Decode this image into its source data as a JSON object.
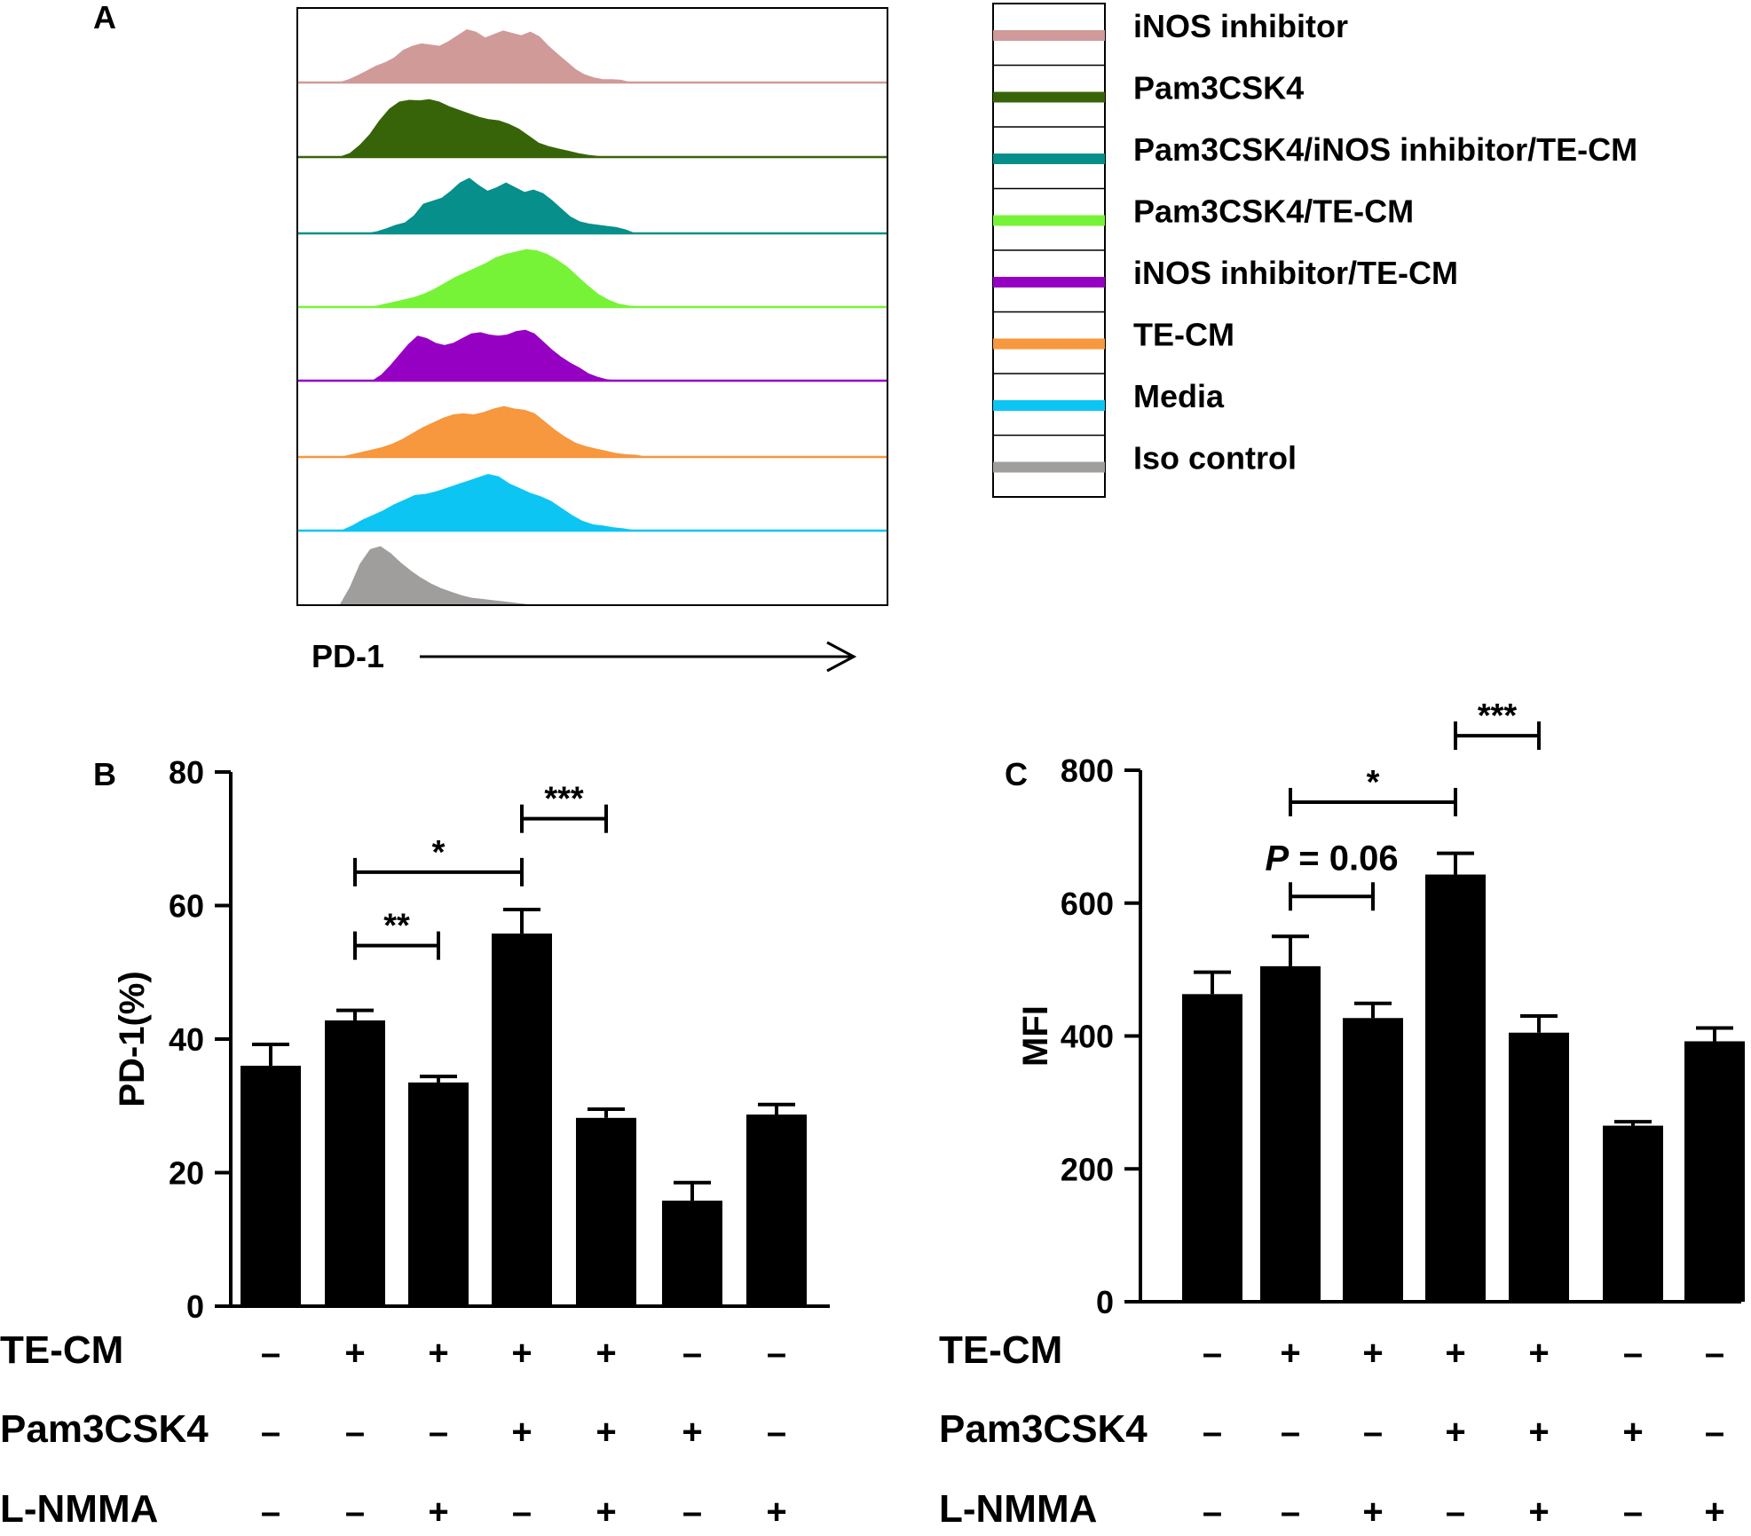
{
  "panel_a": {
    "letter": "A",
    "axis_label": "PD-1",
    "histograms": [
      {
        "name": "iNOS inhibitor",
        "color": "#d09a98",
        "profile": [
          0,
          0.05,
          0.12,
          0.2,
          0.28,
          0.34,
          0.42,
          0.55,
          0.62,
          0.66,
          0.64,
          0.62,
          0.7,
          0.8,
          0.9,
          0.86,
          0.76,
          0.82,
          0.88,
          0.84,
          0.8,
          0.86,
          0.78,
          0.62,
          0.48,
          0.35,
          0.22,
          0.13,
          0.08,
          0.05,
          0.05,
          0.04,
          0
        ]
      },
      {
        "name": "Pam3CSK4",
        "color": "#386409",
        "profile": [
          0,
          0.06,
          0.2,
          0.38,
          0.62,
          0.82,
          0.94,
          0.97,
          0.96,
          0.98,
          0.94,
          0.86,
          0.8,
          0.74,
          0.68,
          0.64,
          0.62,
          0.56,
          0.48,
          0.36,
          0.24,
          0.18,
          0.14,
          0.1,
          0.06,
          0.03,
          0.01,
          0
        ]
      },
      {
        "name": "Pam3CSK4/iNOS inhibitor/TE-CM",
        "color": "#068f8b",
        "profile": [
          0,
          0.03,
          0.08,
          0.14,
          0.18,
          0.3,
          0.5,
          0.55,
          0.6,
          0.72,
          0.86,
          0.94,
          0.82,
          0.72,
          0.78,
          0.86,
          0.78,
          0.7,
          0.74,
          0.68,
          0.56,
          0.42,
          0.28,
          0.2,
          0.16,
          0.14,
          0.12,
          0.1,
          0.06,
          0
        ]
      },
      {
        "name": "Pam3CSK4/TE-CM",
        "color": "#77f337",
        "profile": [
          0,
          0.04,
          0.08,
          0.12,
          0.16,
          0.22,
          0.3,
          0.4,
          0.5,
          0.58,
          0.66,
          0.74,
          0.84,
          0.9,
          0.94,
          0.98,
          0.96,
          0.9,
          0.8,
          0.68,
          0.52,
          0.36,
          0.22,
          0.12,
          0.05,
          0.02,
          0
        ]
      },
      {
        "name": "iNOS inhibitor/TE-CM",
        "color": "#9600c3",
        "profile": [
          0,
          0.1,
          0.26,
          0.44,
          0.62,
          0.76,
          0.72,
          0.64,
          0.6,
          0.64,
          0.72,
          0.8,
          0.82,
          0.78,
          0.76,
          0.78,
          0.84,
          0.86,
          0.8,
          0.66,
          0.52,
          0.4,
          0.3,
          0.22,
          0.12,
          0.06,
          0.02,
          0
        ]
      },
      {
        "name": "TE-CM",
        "color": "#f7973e",
        "profile": [
          0,
          0.04,
          0.08,
          0.12,
          0.16,
          0.22,
          0.3,
          0.4,
          0.5,
          0.58,
          0.66,
          0.72,
          0.74,
          0.72,
          0.76,
          0.82,
          0.86,
          0.82,
          0.8,
          0.74,
          0.6,
          0.46,
          0.34,
          0.24,
          0.18,
          0.14,
          0.1,
          0.06,
          0.04,
          0.03,
          0
        ]
      },
      {
        "name": "Media",
        "color": "#0dc5f3",
        "profile": [
          0,
          0.08,
          0.18,
          0.26,
          0.34,
          0.44,
          0.52,
          0.6,
          0.62,
          0.66,
          0.72,
          0.78,
          0.84,
          0.9,
          0.96,
          0.92,
          0.8,
          0.72,
          0.64,
          0.58,
          0.5,
          0.38,
          0.26,
          0.16,
          0.1,
          0.08,
          0.05,
          0.03,
          0
        ]
      },
      {
        "name": "Iso control",
        "color": "#a09e9d",
        "profile": [
          0,
          0.3,
          0.7,
          0.95,
          1,
          0.88,
          0.72,
          0.58,
          0.46,
          0.36,
          0.28,
          0.22,
          0.16,
          0.12,
          0.1,
          0.08,
          0.06,
          0.04,
          0.02,
          0
        ]
      }
    ]
  },
  "legend": {
    "items": [
      {
        "label": "iNOS inhibitor",
        "color": "#d09a98"
      },
      {
        "label": "Pam3CSK4",
        "color": "#386409"
      },
      {
        "label": "Pam3CSK4/iNOS inhibitor/TE-CM",
        "color": "#068f8b"
      },
      {
        "label": "Pam3CSK4/TE-CM",
        "color": "#77f337"
      },
      {
        "label": "iNOS inhibitor/TE-CM",
        "color": "#9600c3"
      },
      {
        "label": "TE-CM",
        "color": "#f7973e"
      },
      {
        "label": "Media",
        "color": "#0dc5f3"
      },
      {
        "label": "Iso control",
        "color": "#a09e9d"
      }
    ]
  },
  "chart_data": [
    {
      "panel": "B",
      "type": "bar",
      "ylabel": "PD-1(%)",
      "ylim": [
        0,
        80
      ],
      "yticks": [
        0,
        20,
        40,
        60,
        80
      ],
      "values": [
        36,
        42.8,
        33.5,
        55.8,
        28.2,
        15.8,
        28.7
      ],
      "errors": [
        3.2,
        1.5,
        0.9,
        3.6,
        1.3,
        2.7,
        1.5
      ],
      "bar_color": "#000000",
      "significance": [
        {
          "from": 1,
          "to": 2,
          "y": 54,
          "text": "**"
        },
        {
          "from": 1,
          "to": 3,
          "y": 65,
          "text": "*"
        },
        {
          "from": 3,
          "to": 4,
          "y": 73,
          "text": "***"
        }
      ],
      "conditions": [
        {
          "label": "TE-CM",
          "signs": [
            "–",
            "+",
            "+",
            "+",
            "+",
            "–",
            "–"
          ]
        },
        {
          "label": "Pam3CSK4",
          "signs": [
            "–",
            "–",
            "–",
            "+",
            "+",
            "+",
            "–"
          ]
        },
        {
          "label": "L-NMMA",
          "signs": [
            "–",
            "–",
            "+",
            "–",
            "+",
            "–",
            "+"
          ]
        }
      ]
    },
    {
      "panel": "C",
      "type": "bar",
      "ylabel": "MFI",
      "ylim": [
        0,
        800
      ],
      "yticks": [
        0,
        200,
        400,
        600,
        800
      ],
      "values": [
        463,
        505,
        427,
        643,
        405,
        265,
        392
      ],
      "errors": [
        33,
        45,
        22,
        32,
        25,
        6,
        20
      ],
      "bar_color": "#000000",
      "significance": [
        {
          "from": 1,
          "to": 2,
          "y": 610,
          "text": "P = 0.06"
        },
        {
          "from": 1,
          "to": 3,
          "y": 752,
          "text": "*"
        },
        {
          "from": 3,
          "to": 4,
          "y": 852,
          "text": "***"
        }
      ],
      "conditions": [
        {
          "label": "TE-CM",
          "signs": [
            "–",
            "+",
            "+",
            "+",
            "+",
            "–",
            "–"
          ]
        },
        {
          "label": "Pam3CSK4",
          "signs": [
            "–",
            "–",
            "–",
            "+",
            "+",
            "+",
            "–"
          ]
        },
        {
          "label": "L-NMMA",
          "signs": [
            "–",
            "–",
            "+",
            "–",
            "+",
            "–",
            "+"
          ]
        }
      ]
    }
  ]
}
